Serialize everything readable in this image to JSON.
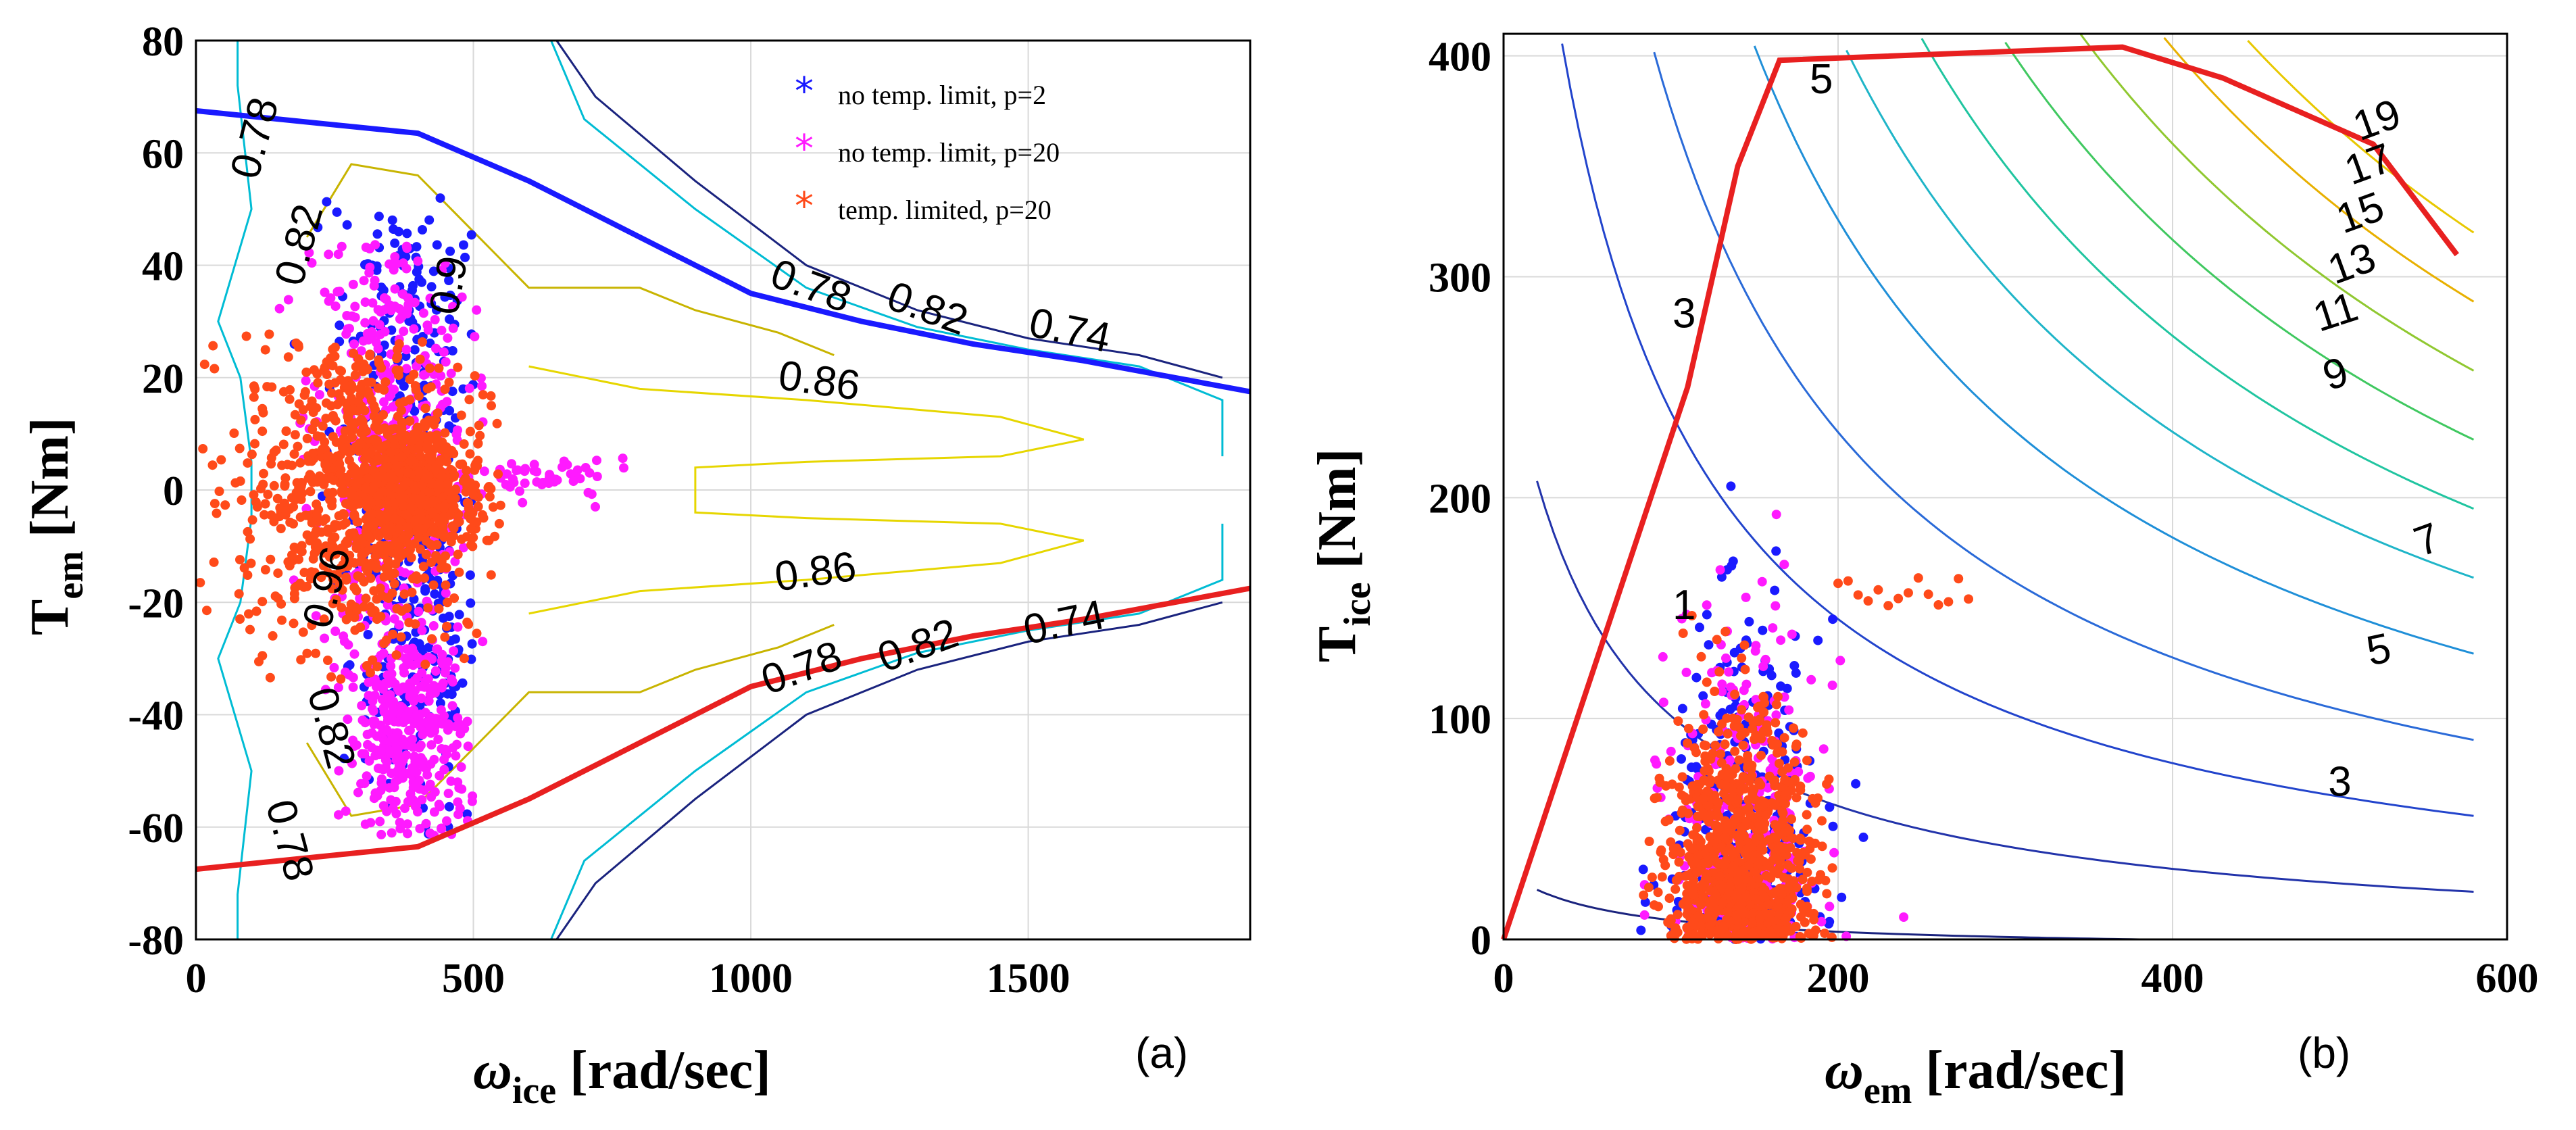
{
  "chart_data": [
    {
      "id": "a",
      "type": "scatter",
      "panel_tag": "(a)",
      "xlabel_main": "ω",
      "xlabel_sub": "ice",
      "xlabel_unit": " [rad/sec]",
      "ylabel_main": "T",
      "ylabel_sub": "em",
      "ylabel_unit": " [Nm]",
      "xlim": [
        0,
        1900
      ],
      "ylim": [
        -80,
        80
      ],
      "xticks": [
        0,
        500,
        1000,
        1500
      ],
      "yticks": [
        -80,
        -60,
        -40,
        -20,
        0,
        20,
        40,
        60,
        80
      ],
      "grid": true,
      "legend_position": "top-right",
      "legend": [
        {
          "label": "no temp. limit, p=2",
          "color": "#1a1aff"
        },
        {
          "label": "no temp. limit, p=20",
          "color": "#ff1aff"
        },
        {
          "label": "temp. limited, p=20",
          "color": "#ff4a1a"
        }
      ],
      "max_torque_upper": {
        "color": "#1a1aff",
        "x": [
          0,
          400,
          600,
          800,
          1000,
          1200,
          1400,
          1600,
          1900
        ],
        "y": [
          67.5,
          63.5,
          55,
          45,
          35,
          30,
          26,
          23,
          17.5
        ]
      },
      "max_torque_lower": {
        "color": "#e82020",
        "x": [
          0,
          400,
          600,
          800,
          1000,
          1200,
          1400,
          1600,
          1900
        ],
        "y": [
          -67.5,
          -63.5,
          -55,
          -45,
          -35,
          -30,
          -26,
          -23,
          -17.5
        ]
      },
      "contour_labels": [
        {
          "text": "0.78",
          "x": 130,
          "y": 62,
          "rot": -75
        },
        {
          "text": "0.82",
          "x": 210,
          "y": 43,
          "rot": -75
        },
        {
          "text": "0.9",
          "x": 480,
          "y": 36,
          "rot": -80
        },
        {
          "text": "0.78",
          "x": 1100,
          "y": 34,
          "rot": 20
        },
        {
          "text": "0.82",
          "x": 1310,
          "y": 30,
          "rot": 20
        },
        {
          "text": "0.74",
          "x": 1570,
          "y": 26,
          "rot": 12
        },
        {
          "text": "0.86",
          "x": 1120,
          "y": 17,
          "rot": 8
        },
        {
          "text": "0.96",
          "x": 260,
          "y": -18,
          "rot": -75
        },
        {
          "text": "0.86",
          "x": 1120,
          "y": -17,
          "rot": -8
        },
        {
          "text": "0.78",
          "x": 1100,
          "y": -34,
          "rot": -20
        },
        {
          "text": "0.82",
          "x": 1310,
          "y": -30,
          "rot": -20
        },
        {
          "text": "0.74",
          "x": 1570,
          "y": -26,
          "rot": -12
        },
        {
          "text": "0.82",
          "x": 220,
          "y": -43,
          "rot": 75
        },
        {
          "text": "0.78",
          "x": 145,
          "y": -63,
          "rot": 75
        }
      ]
    },
    {
      "id": "b",
      "type": "scatter",
      "panel_tag": "(b)",
      "xlabel_main": "ω",
      "xlabel_sub": "em",
      "xlabel_unit": " [rad/sec]",
      "ylabel_main": "T",
      "ylabel_sub": "ice",
      "ylabel_unit": " [Nm]",
      "xlim": [
        0,
        600
      ],
      "ylim": [
        0,
        410
      ],
      "xticks": [
        0,
        200,
        400,
        600
      ],
      "yticks": [
        0,
        100,
        200,
        300,
        400
      ],
      "grid": true,
      "max_torque": {
        "color": "#e82020",
        "x": [
          0,
          110,
          140,
          165,
          370,
          430,
          520,
          570
        ],
        "y": [
          0,
          250,
          350,
          398,
          404,
          390,
          360,
          310
        ]
      },
      "contour_labels": [
        {
          "text": "1",
          "x": 108,
          "y": 145,
          "rot": 0
        },
        {
          "text": "3",
          "x": 108,
          "y": 277,
          "rot": 0
        },
        {
          "text": "5",
          "x": 190,
          "y": 383,
          "rot": 0
        },
        {
          "text": "3",
          "x": 500,
          "y": 65,
          "rot": 0
        },
        {
          "text": "5",
          "x": 525,
          "y": 125,
          "rot": -12
        },
        {
          "text": "7",
          "x": 555,
          "y": 175,
          "rot": -20
        },
        {
          "text": "9",
          "x": 500,
          "y": 250,
          "rot": -18
        },
        {
          "text": "11",
          "x": 500,
          "y": 278,
          "rot": -18
        },
        {
          "text": "13",
          "x": 510,
          "y": 300,
          "rot": -20
        },
        {
          "text": "15",
          "x": 515,
          "y": 323,
          "rot": -20
        },
        {
          "text": "17",
          "x": 520,
          "y": 345,
          "rot": -20
        },
        {
          "text": "19",
          "x": 525,
          "y": 365,
          "rot": -20
        }
      ]
    }
  ]
}
